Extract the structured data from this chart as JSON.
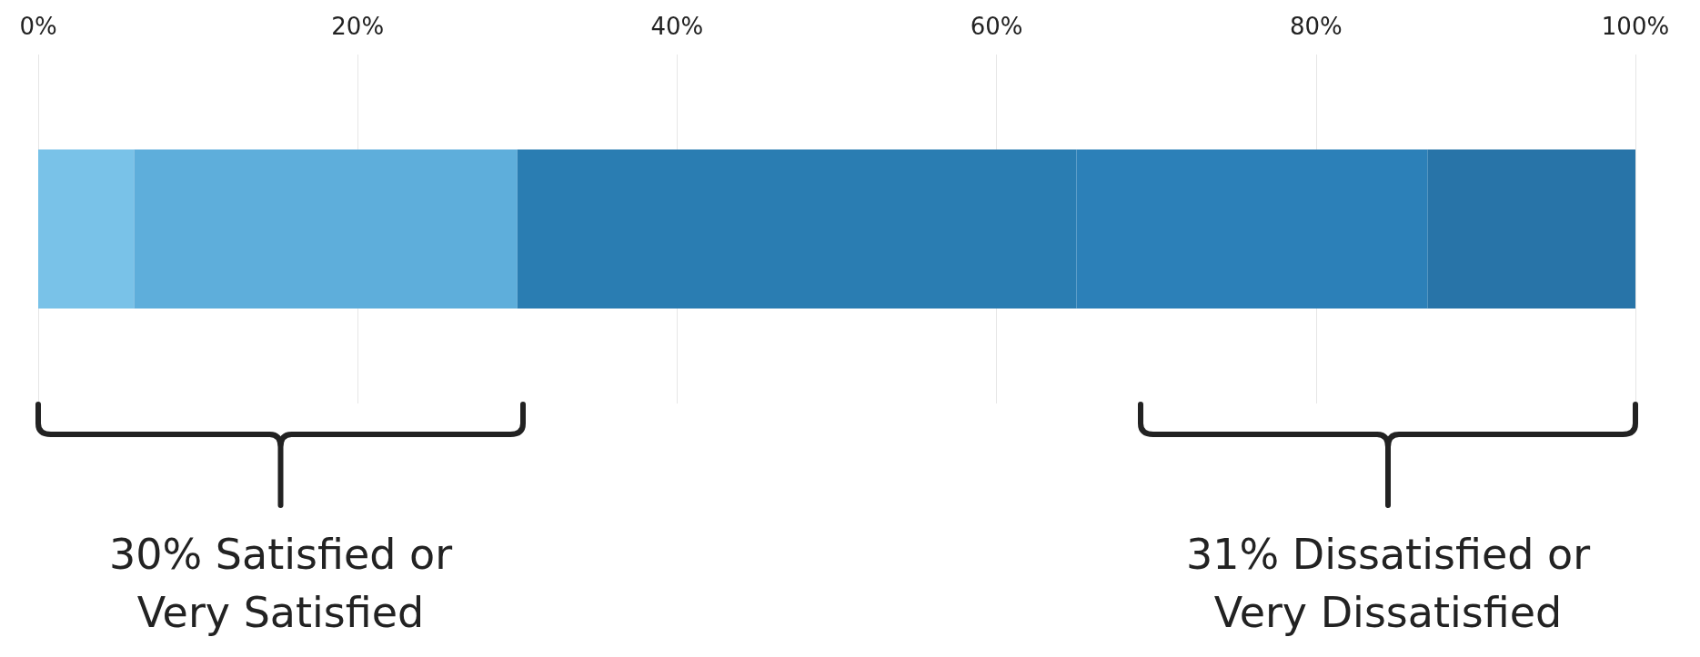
{
  "chart_data": {
    "type": "bar",
    "orientation": "horizontal",
    "stacked": true,
    "categories": [
      null
    ],
    "series": [
      {
        "color": "#79c2e8",
        "values": [
          6
        ]
      },
      {
        "color": "#5eaedb",
        "values": [
          24
        ]
      },
      {
        "color": "#2a7db2",
        "values": [
          35
        ]
      },
      {
        "color": "#2c80b8",
        "values": [
          22
        ]
      },
      {
        "color": "#2874a8",
        "values": [
          13
        ]
      }
    ],
    "xlim": [
      0,
      100
    ],
    "xticks": [
      {
        "value": 0,
        "label": "0%"
      },
      {
        "value": 20,
        "label": "20%"
      },
      {
        "value": 40,
        "label": "40%"
      },
      {
        "value": 60,
        "label": "60%"
      },
      {
        "value": 80,
        "label": "80%"
      },
      {
        "value": 100,
        "label": "100%"
      }
    ],
    "grid": "x",
    "annotations": [
      "30% Satisfied or\nVery Satisfied",
      "31% Dissatisfied or\nVery Dissatisfied"
    ]
  }
}
